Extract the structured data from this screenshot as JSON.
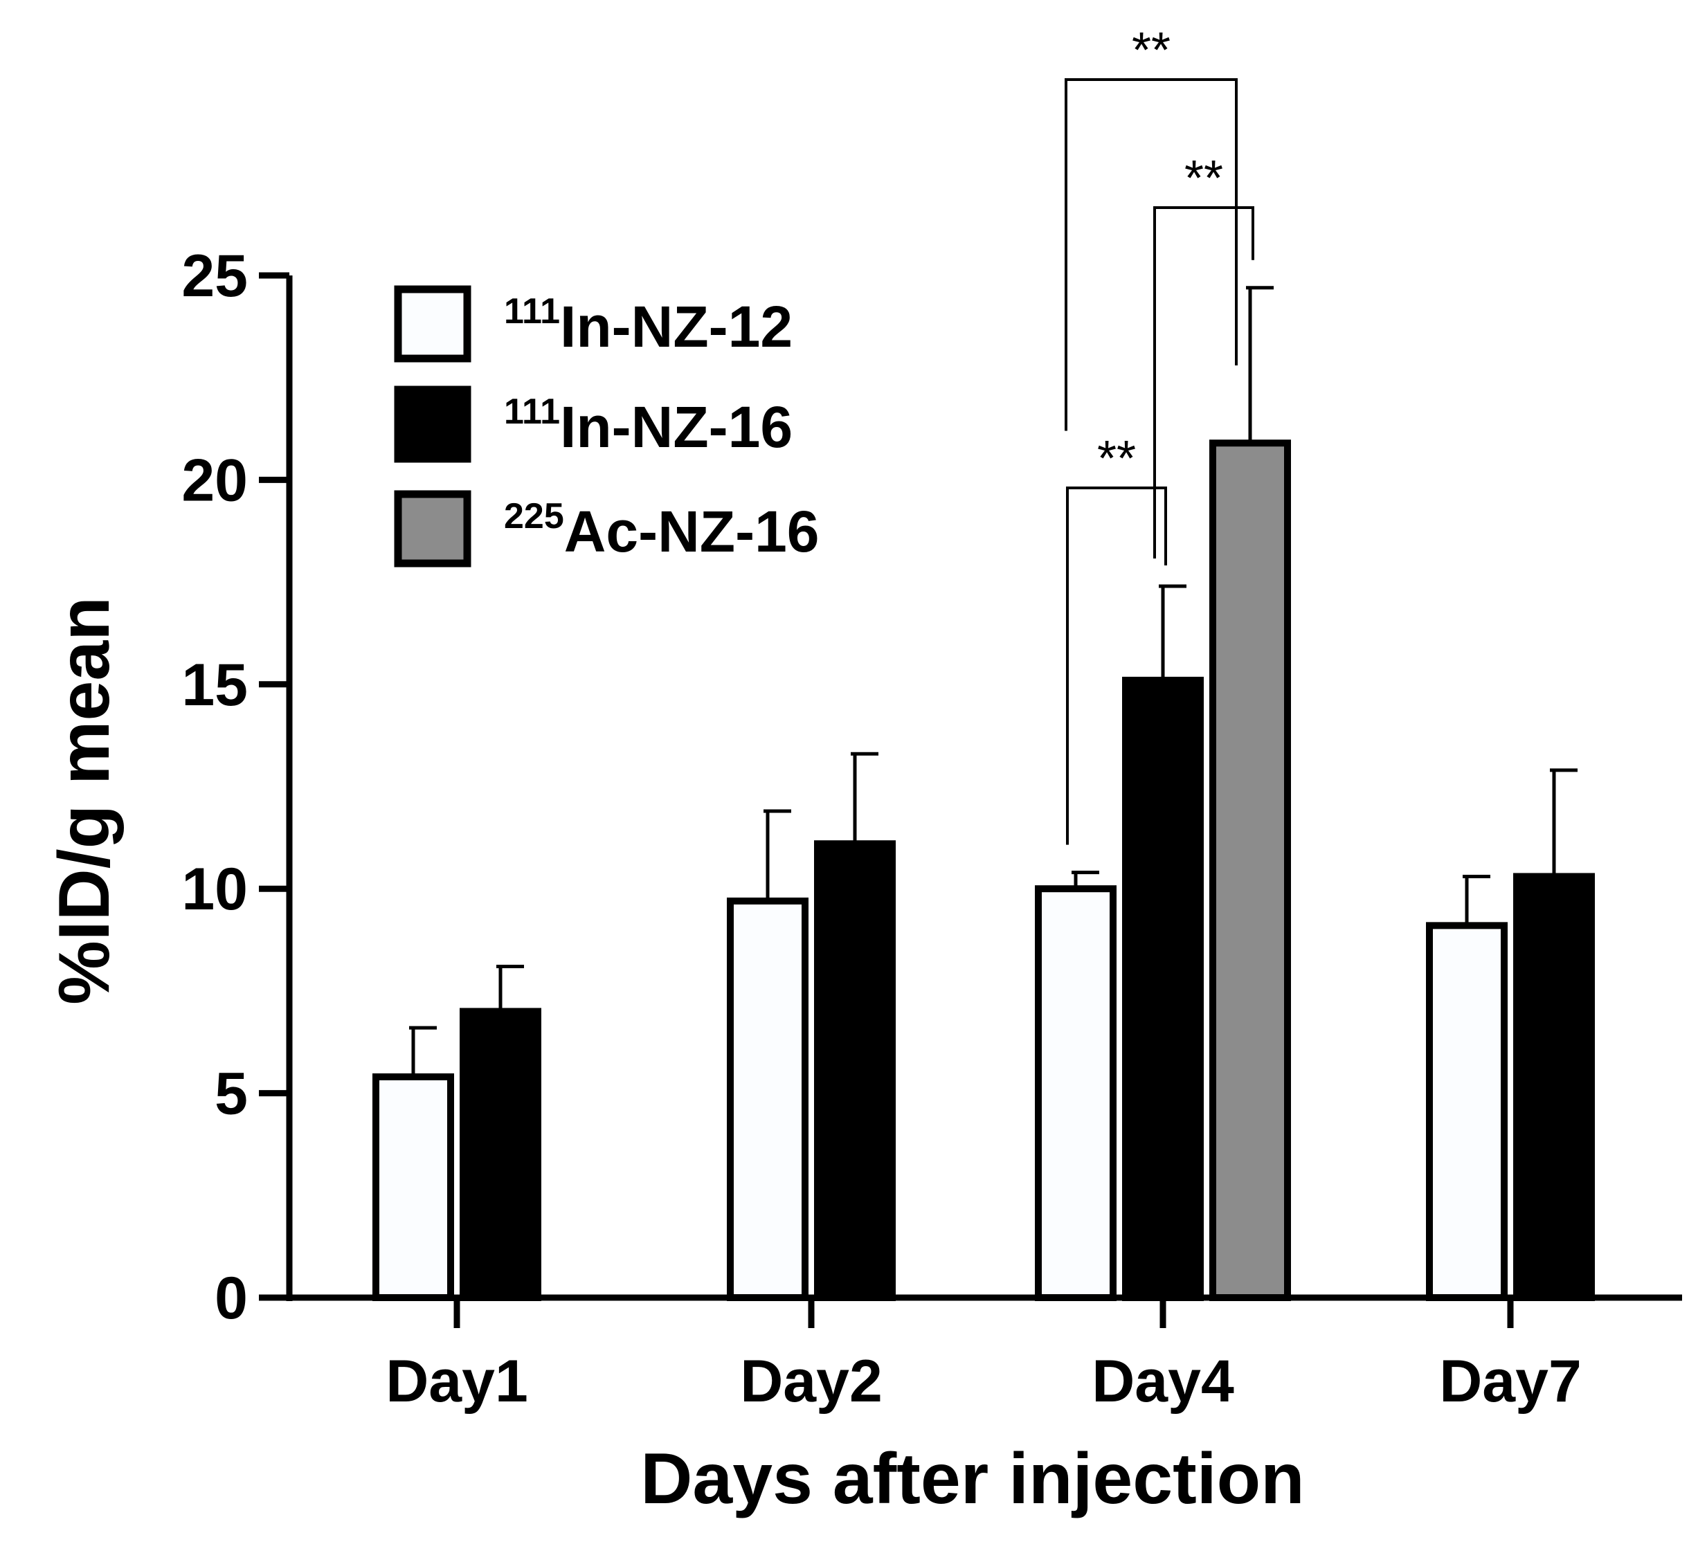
{
  "chart_data": {
    "type": "bar",
    "xlabel": "Days after injection",
    "ylabel": "%ID/g mean",
    "ylim": [
      0,
      25
    ],
    "yticks": [
      0,
      5,
      10,
      15,
      20,
      25
    ],
    "grid": false,
    "legend_position": "top-left",
    "categories": [
      "Day1",
      "Day2",
      "Day4",
      "Day7"
    ],
    "series": [
      {
        "name": "111In-NZ-12",
        "legend_sup": "111",
        "legend_main": "In-NZ-12",
        "color": "#fbfdff",
        "values": [
          5.4,
          9.7,
          10.0,
          9.1
        ],
        "errors": [
          1.2,
          2.2,
          0.4,
          1.2
        ]
      },
      {
        "name": "111In-NZ-16",
        "legend_sup": "111",
        "legend_main": "In-NZ-16",
        "color": "#000000",
        "values": [
          7.0,
          11.1,
          15.1,
          10.3
        ],
        "errors": [
          1.1,
          2.2,
          2.3,
          2.6
        ]
      },
      {
        "name": "225Ac-NZ-16",
        "legend_sup": "225",
        "legend_main": "Ac-NZ-16",
        "color": "#8c8c8c",
        "values": [
          null,
          null,
          20.9,
          null
        ],
        "errors": [
          null,
          null,
          3.8,
          null
        ]
      }
    ],
    "significance": [
      {
        "category": "Day4",
        "from_series": 0,
        "to_series": 1,
        "label": "**"
      },
      {
        "category": "Day4",
        "from_series": 1,
        "to_series": 2,
        "label": "**"
      },
      {
        "category": "Day4",
        "from_series": 0,
        "to_series": 2,
        "label": "**"
      }
    ]
  }
}
